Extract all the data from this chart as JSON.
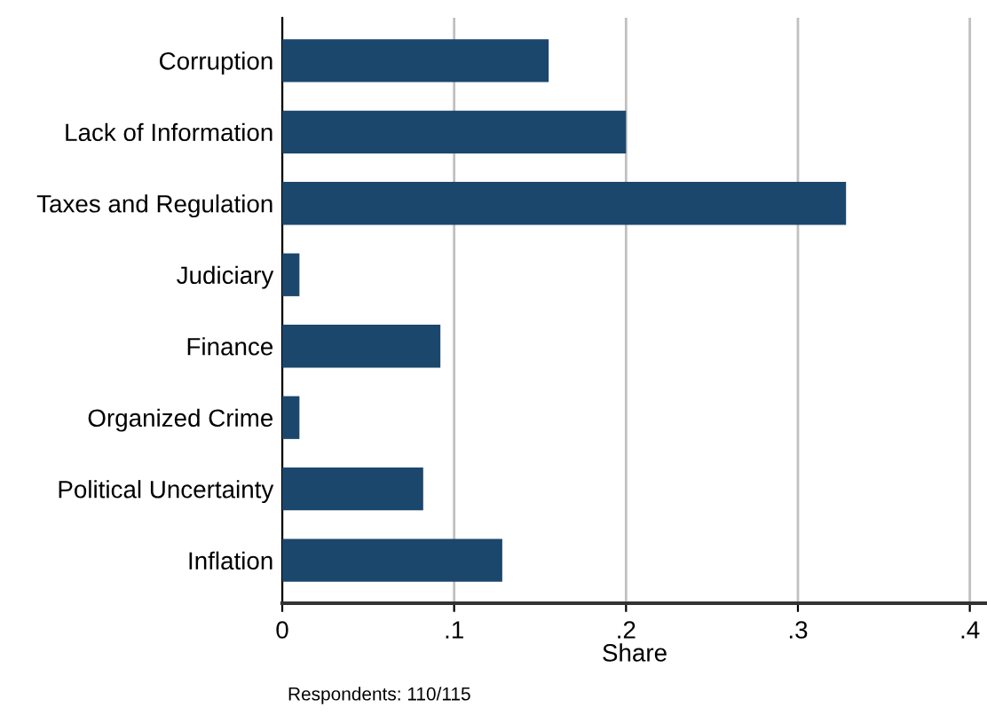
{
  "chart_data": {
    "type": "bar",
    "orientation": "horizontal",
    "categories": [
      "Corruption",
      "Lack of Information",
      "Taxes and Regulation",
      "Judiciary",
      "Finance",
      "Organized Crime",
      "Political Uncertainty",
      "Inflation"
    ],
    "values": [
      0.155,
      0.2,
      0.328,
      0.01,
      0.092,
      0.01,
      0.082,
      0.128
    ],
    "color": "#1c476d",
    "xlabel": "Share",
    "xlim": [
      0,
      0.41
    ],
    "xticks": [
      {
        "value": 0,
        "label": "0"
      },
      {
        "value": 0.1,
        "label": ".1"
      },
      {
        "value": 0.2,
        "label": ".2"
      },
      {
        "value": 0.3,
        "label": ".3"
      },
      {
        "value": 0.4,
        "label": ".4"
      }
    ],
    "grid": "x",
    "annotations": [
      "Respondents: 110/115"
    ]
  }
}
